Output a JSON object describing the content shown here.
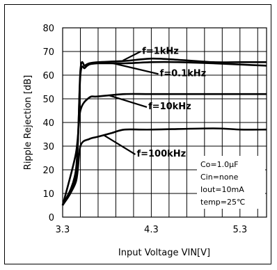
{
  "chart_data": {
    "type": "line",
    "xlabel": "Input Voltage VIN[V]",
    "ylabel": "Ripple Rejection [dB]",
    "xlim": [
      3.3,
      5.6
    ],
    "ylim": [
      0,
      80
    ],
    "xticks": [
      3.3,
      4.3,
      5.3
    ],
    "xtick_labels": [
      "3.3",
      "4.3",
      "5.3"
    ],
    "yticks": [
      0,
      10,
      20,
      30,
      40,
      50,
      60,
      70,
      80
    ],
    "grid": true,
    "series": [
      {
        "name": "f=1kHz",
        "x": [
          3.3,
          3.45,
          3.5,
          3.55,
          3.6,
          3.7,
          4.0,
          4.3,
          4.6,
          5.0,
          5.3,
          5.6
        ],
        "y": [
          5,
          18,
          62,
          64,
          65,
          65.5,
          66,
          67,
          66.5,
          65.5,
          65.5,
          65.5
        ]
      },
      {
        "name": "f=0.1kHz",
        "x": [
          3.3,
          3.45,
          3.5,
          3.55,
          3.6,
          3.7,
          4.0,
          4.3,
          4.6,
          5.0,
          5.3,
          5.6
        ],
        "y": [
          5,
          20,
          60,
          63,
          64.5,
          65,
          65,
          65.5,
          65.5,
          65,
          64.5,
          64
        ]
      },
      {
        "name": "f=10kHz",
        "x": [
          3.3,
          3.45,
          3.5,
          3.6,
          3.7,
          4.0,
          4.3,
          5.0,
          5.6
        ],
        "y": [
          5,
          27,
          45,
          50.5,
          51,
          52,
          52,
          52,
          52
        ]
      },
      {
        "name": "f=100kHz",
        "x": [
          3.3,
          3.45,
          3.5,
          3.6,
          3.7,
          3.85,
          4.0,
          4.3,
          5.0,
          5.3,
          5.6
        ],
        "y": [
          5,
          15,
          30,
          33,
          34,
          35.5,
          37,
          37,
          37.5,
          37,
          37
        ]
      }
    ],
    "curve_labels": [
      "f=1kHz",
      "f=0.1kHz",
      "f=10kHz",
      "f=100kHz"
    ],
    "annotations": [
      "Co=1.0μF",
      "Cin=none",
      "Iout=10mA",
      "temp=25℃"
    ]
  }
}
